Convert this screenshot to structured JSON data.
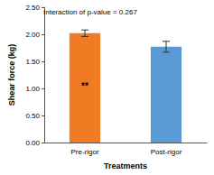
{
  "chart_data": {
    "type": "bar",
    "categories": [
      "Pre-rigor",
      "Post-rigor"
    ],
    "values": [
      2.02,
      1.77
    ],
    "errors": [
      0.06,
      0.1
    ],
    "colors": [
      "#f07b22",
      "#5b9bd5"
    ],
    "x_label": "Treatments",
    "y_label": "Shear force (kg)",
    "ylim": [
      0,
      2.5
    ],
    "yticks": [
      {
        "value": 0,
        "label": "0.00"
      },
      {
        "value": 0.5,
        "label": "0.50"
      },
      {
        "value": 1,
        "label": "1.00"
      },
      {
        "value": 1.5,
        "label": "1.50"
      },
      {
        "value": 2,
        "label": "2.00"
      },
      {
        "value": 2.5,
        "label": "2.50"
      }
    ],
    "grid": false,
    "annotations": [
      {
        "text": "Interaction of p-value = 0.267"
      },
      {
        "text": "**",
        "category": "Pre-rigor",
        "y": 1.05
      }
    ]
  }
}
